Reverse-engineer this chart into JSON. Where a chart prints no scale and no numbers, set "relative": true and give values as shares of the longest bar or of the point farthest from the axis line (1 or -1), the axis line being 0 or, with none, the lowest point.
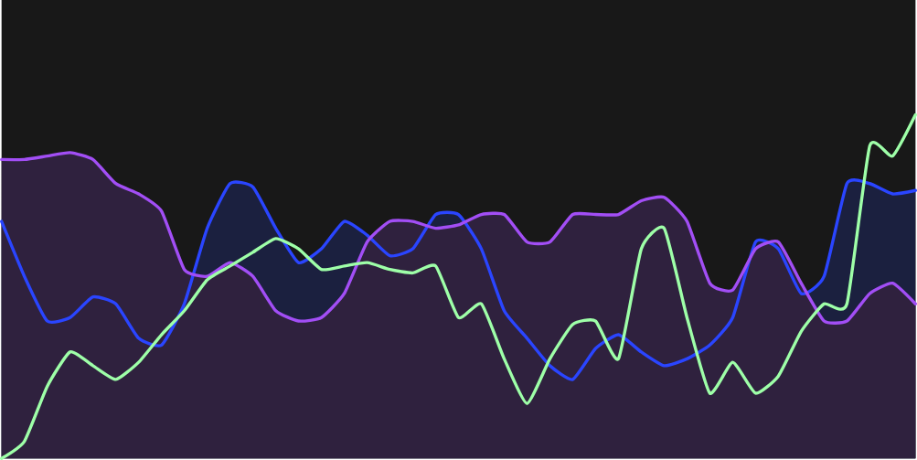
{
  "chart_data": {
    "type": "area",
    "relative": true,
    "categories": [
      null,
      null,
      null,
      null,
      null,
      null,
      null,
      null,
      null,
      null,
      null,
      null,
      null,
      null,
      null,
      null,
      null,
      null,
      null,
      null,
      null,
      null,
      null,
      null,
      null,
      null,
      null,
      null,
      null,
      null,
      null,
      null,
      null,
      null,
      null,
      null,
      null,
      null,
      null,
      null,
      null
    ],
    "series": [
      {
        "color": "#2a45ff",
        "values": [
          0.69,
          0.53,
          0.4,
          0.41,
          0.47,
          0.45,
          0.35,
          0.33,
          0.45,
          0.67,
          0.8,
          0.79,
          0.67,
          0.57,
          0.61,
          0.69,
          0.65,
          0.59,
          0.61,
          0.71,
          0.71,
          0.61,
          0.43,
          0.35,
          0.27,
          0.23,
          0.32,
          0.36,
          0.31,
          0.27,
          0.29,
          0.33,
          0.41,
          0.63,
          0.61,
          0.48,
          0.53,
          0.8,
          0.8,
          0.77,
          0.78
        ]
      },
      {
        "color": "#a24ef5",
        "values": [
          0.87,
          0.87,
          0.88,
          0.89,
          0.87,
          0.8,
          0.77,
          0.72,
          0.55,
          0.53,
          0.57,
          0.53,
          0.43,
          0.4,
          0.41,
          0.48,
          0.63,
          0.69,
          0.69,
          0.67,
          0.68,
          0.71,
          0.71,
          0.63,
          0.63,
          0.71,
          0.71,
          0.71,
          0.75,
          0.76,
          0.69,
          0.51,
          0.49,
          0.61,
          0.63,
          0.51,
          0.4,
          0.4,
          0.48,
          0.51,
          0.45
        ]
      },
      {
        "type": "line",
        "color": "#9effa8",
        "values": [
          0,
          0.05,
          0.21,
          0.31,
          0.27,
          0.23,
          0.28,
          0.36,
          0.43,
          0.52,
          0.56,
          0.6,
          0.64,
          0.61,
          0.55,
          0.56,
          0.57,
          0.55,
          0.54,
          0.56,
          0.41,
          0.45,
          0.29,
          0.16,
          0.29,
          0.39,
          0.4,
          0.29,
          0.61,
          0.67,
          0.41,
          0.19,
          0.28,
          0.19,
          0.24,
          0.37,
          0.45,
          0.45,
          0.91,
          0.88,
          1
        ]
      }
    ]
  }
}
